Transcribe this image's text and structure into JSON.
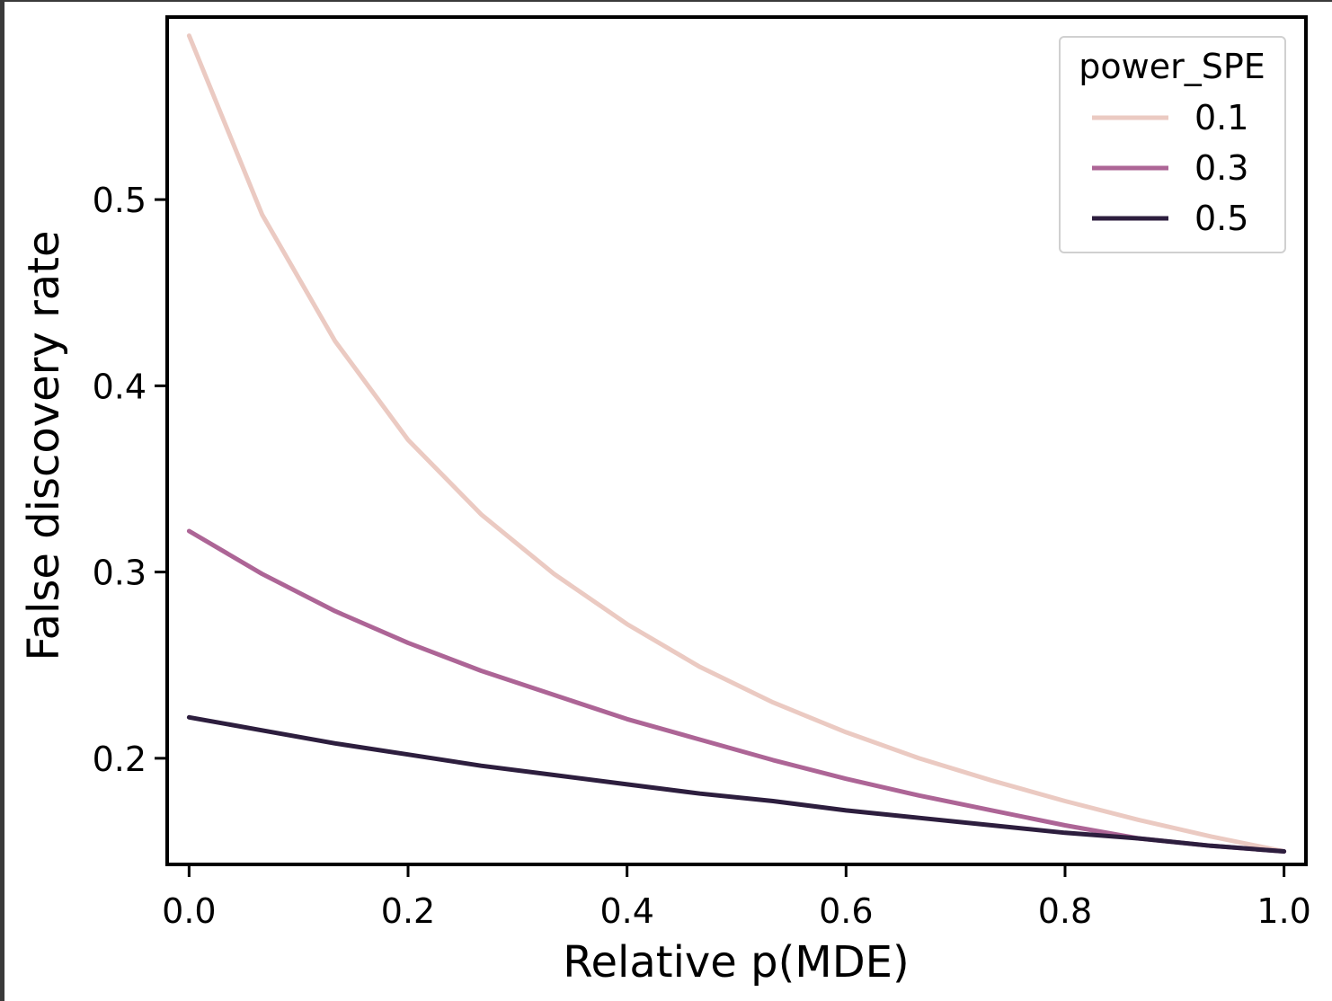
{
  "chart_data": {
    "type": "line",
    "xlabel": "Relative p(MDE)",
    "ylabel": "False discovery rate",
    "xlim": [
      -0.02,
      1.02
    ],
    "ylim": [
      0.143,
      0.598
    ],
    "xticks": [
      0.0,
      0.2,
      0.4,
      0.6,
      0.8,
      1.0
    ],
    "xtick_labels": [
      "0.0",
      "0.2",
      "0.4",
      "0.6",
      "0.8",
      "1.0"
    ],
    "yticks": [
      0.2,
      0.3,
      0.4,
      0.5
    ],
    "ytick_labels": [
      "0.2",
      "0.3",
      "0.4",
      "0.5"
    ],
    "grid": false,
    "legend": {
      "title": "power_SPE",
      "position": "top-right"
    },
    "x": [
      0.0,
      0.0667,
      0.1333,
      0.2,
      0.2667,
      0.3333,
      0.4,
      0.4667,
      0.5333,
      0.6,
      0.6667,
      0.7333,
      0.8,
      0.8667,
      0.9333,
      1.0
    ],
    "series": [
      {
        "name": "0.1",
        "color": "#ebcac2",
        "values": [
          0.588,
          0.492,
          0.424,
          0.371,
          0.331,
          0.299,
          0.272,
          0.249,
          0.23,
          0.214,
          0.2,
          0.188,
          0.177,
          0.167,
          0.158,
          0.15
        ]
      },
      {
        "name": "0.3",
        "color": "#ad6596",
        "values": [
          0.322,
          0.299,
          0.279,
          0.262,
          0.247,
          0.234,
          0.221,
          0.21,
          0.199,
          0.189,
          0.18,
          0.172,
          0.164,
          0.157,
          0.153,
          0.15
        ]
      },
      {
        "name": "0.5",
        "color": "#2d1e3e",
        "values": [
          0.222,
          0.215,
          0.208,
          0.202,
          0.196,
          0.191,
          0.186,
          0.181,
          0.177,
          0.172,
          0.168,
          0.164,
          0.16,
          0.157,
          0.153,
          0.15
        ]
      }
    ]
  }
}
